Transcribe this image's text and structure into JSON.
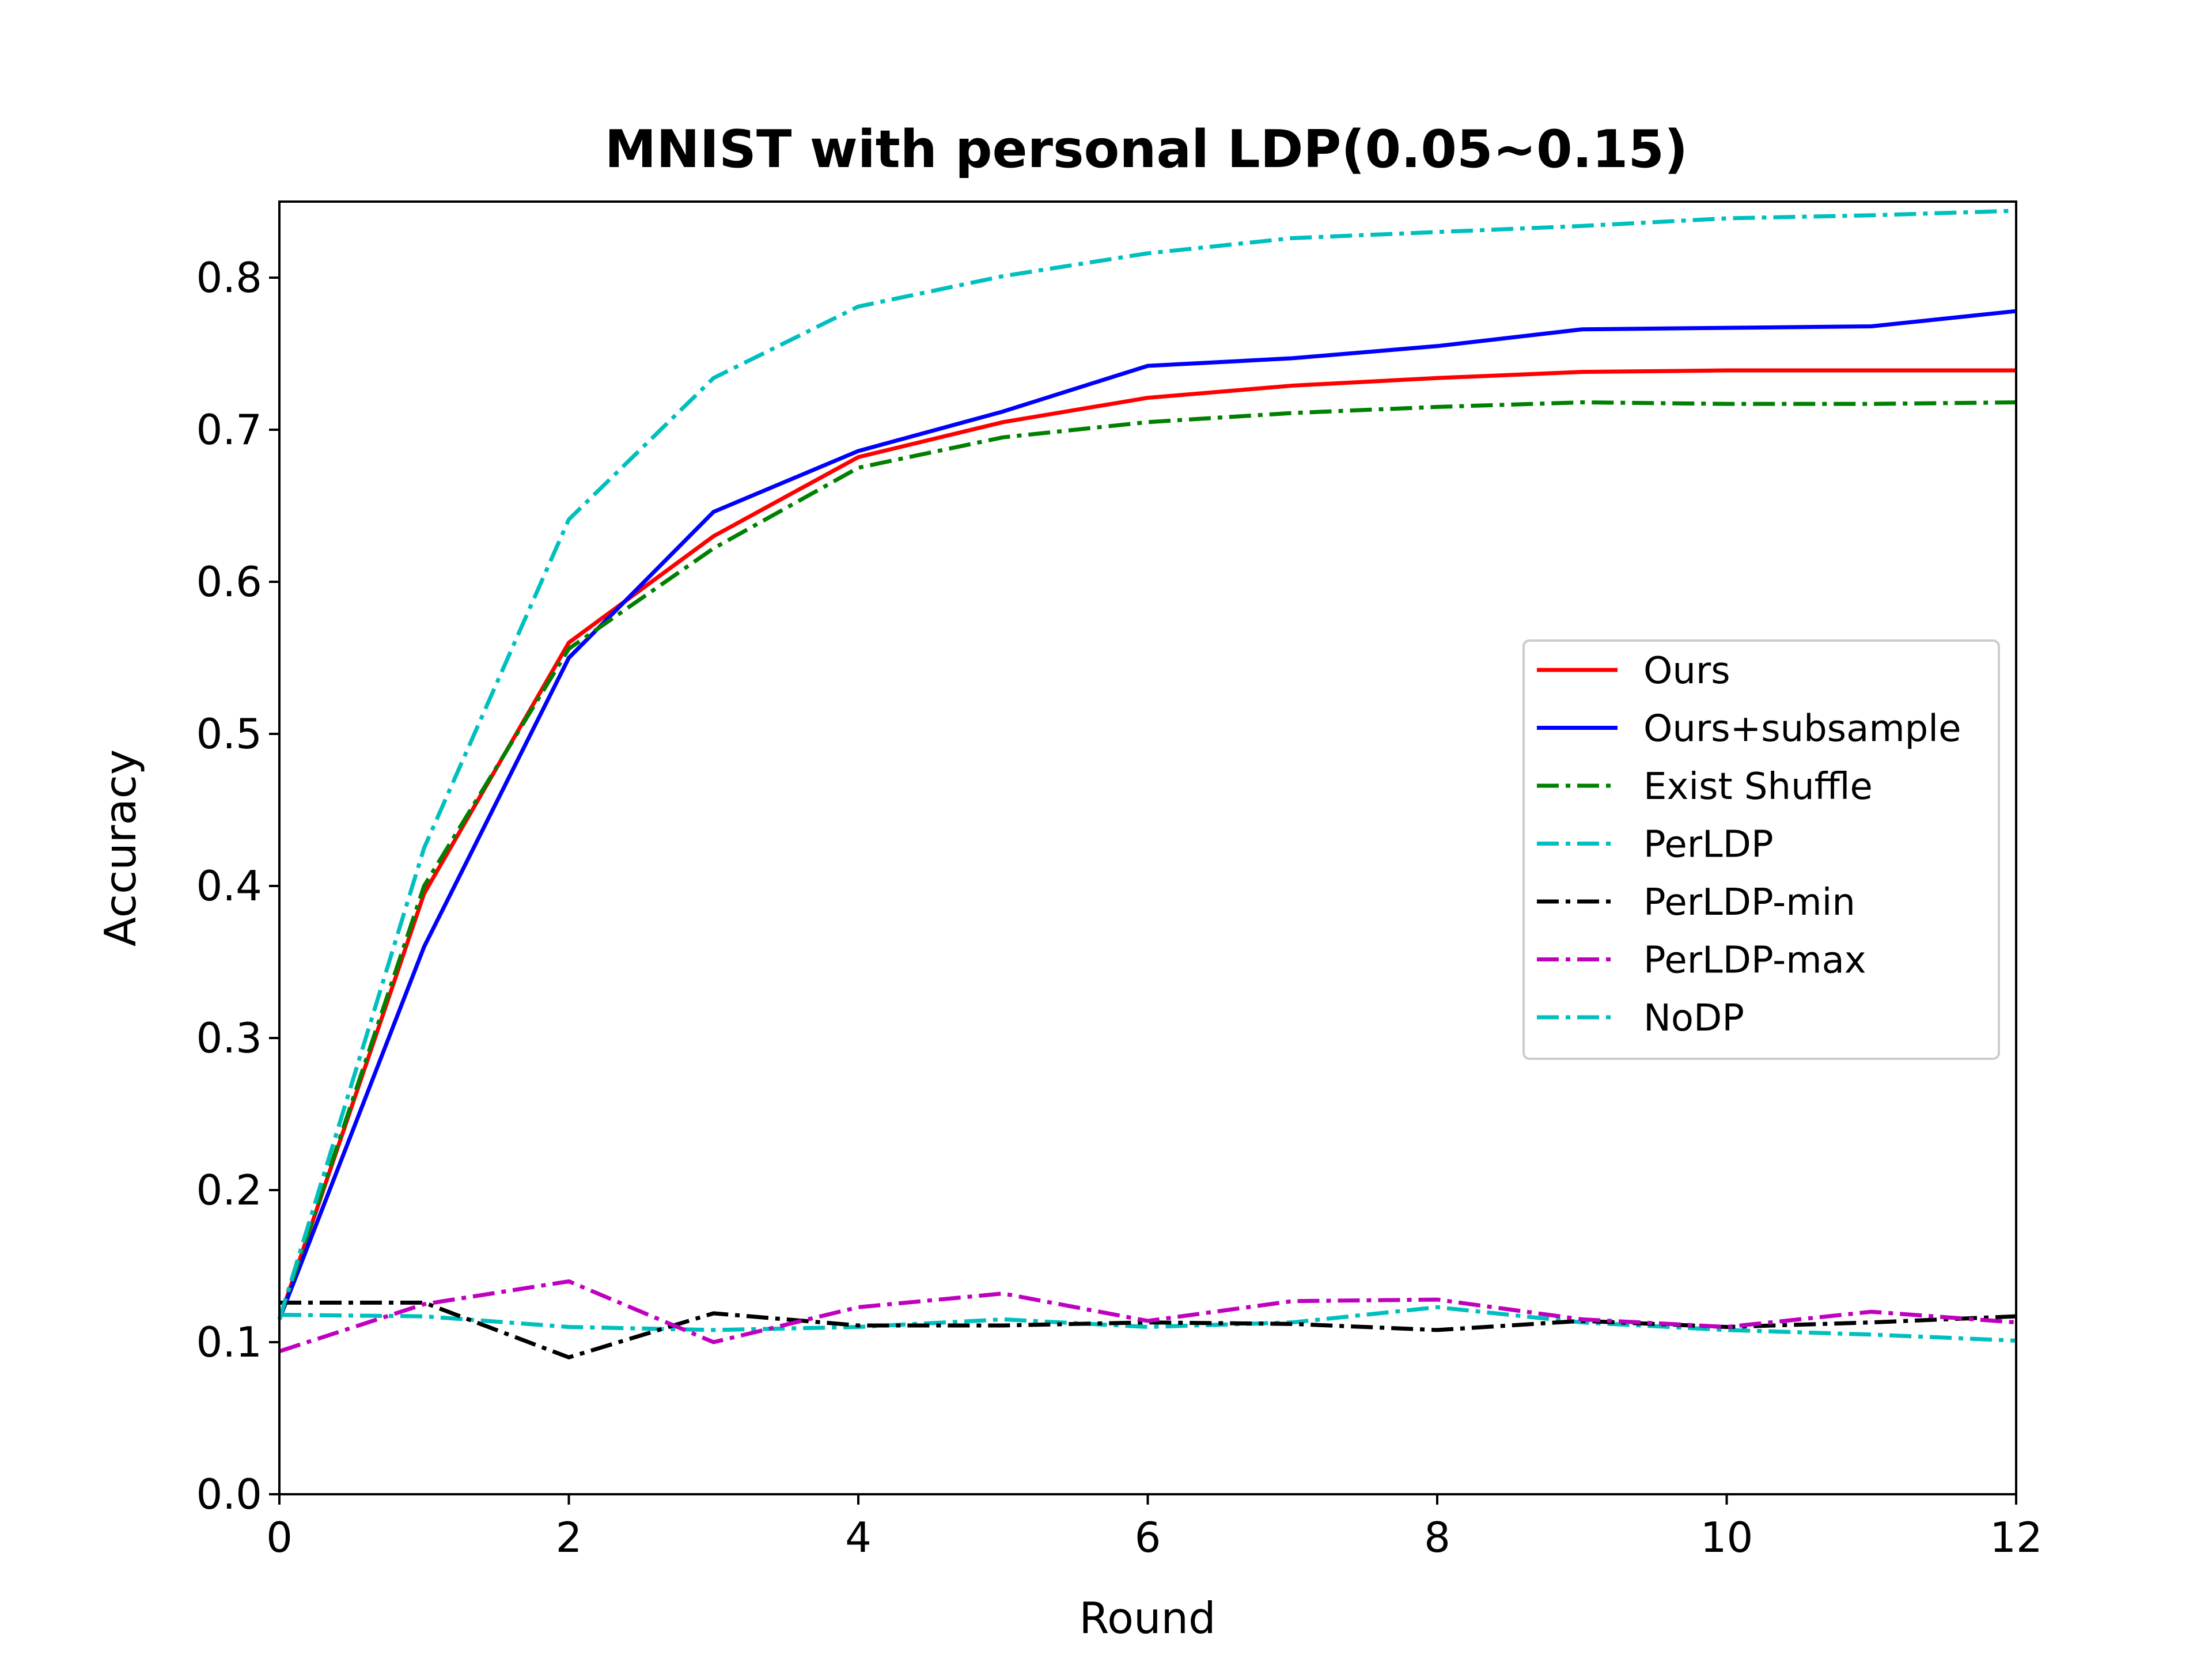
{
  "chart_data": {
    "type": "line",
    "title": "MNIST with personal LDP(0.05~0.15)",
    "xlabel": "Round",
    "ylabel": "Accuracy",
    "xlim": [
      0,
      12
    ],
    "ylim": [
      0,
      0.85
    ],
    "xticks": [
      "0",
      "2",
      "4",
      "6",
      "8",
      "10",
      "12"
    ],
    "yticks": [
      "0.0",
      "0.1",
      "0.2",
      "0.3",
      "0.4",
      "0.5",
      "0.6",
      "0.7",
      "0.8"
    ],
    "grid": false,
    "legend_position": "center-right",
    "x": [
      0,
      1,
      2,
      3,
      4,
      5,
      6,
      7,
      8,
      9,
      10,
      11,
      12
    ],
    "series": [
      {
        "name": "Ours",
        "color": "#ff0000",
        "style": "solid",
        "values": [
          0.115,
          0.395,
          0.56,
          0.63,
          0.682,
          0.705,
          0.721,
          0.729,
          0.734,
          0.738,
          0.739,
          0.739,
          0.739
        ]
      },
      {
        "name": "Ours+subsample",
        "color": "#0000ff",
        "style": "solid",
        "values": [
          0.115,
          0.36,
          0.55,
          0.646,
          0.686,
          0.712,
          0.742,
          0.747,
          0.755,
          0.766,
          0.767,
          0.768,
          0.778
        ]
      },
      {
        "name": "Exist Shuffle",
        "color": "#008000",
        "style": "dashdot",
        "values": [
          0.115,
          0.4,
          0.556,
          0.622,
          0.675,
          0.695,
          0.705,
          0.711,
          0.715,
          0.718,
          0.717,
          0.717,
          0.718
        ]
      },
      {
        "name": "PerLDP",
        "color": "#00bfbf",
        "style": "dashdot",
        "values": [
          0.118,
          0.117,
          0.11,
          0.108,
          0.11,
          0.115,
          0.11,
          0.113,
          0.123,
          0.113,
          0.108,
          0.105,
          0.101
        ]
      },
      {
        "name": "PerLDP-min",
        "color": "#000000",
        "style": "dashdot",
        "values": [
          0.126,
          0.126,
          0.09,
          0.119,
          0.111,
          0.111,
          0.113,
          0.112,
          0.108,
          0.114,
          0.11,
          0.113,
          0.117
        ]
      },
      {
        "name": "PerLDP-max",
        "color": "#bf00bf",
        "style": "dashdot",
        "values": [
          0.094,
          0.125,
          0.14,
          0.1,
          0.123,
          0.132,
          0.114,
          0.127,
          0.128,
          0.115,
          0.11,
          0.12,
          0.113
        ]
      },
      {
        "name": "NoDP",
        "color": "#00bfbf",
        "style": "dashdot",
        "values": [
          0.115,
          0.425,
          0.641,
          0.734,
          0.781,
          0.801,
          0.816,
          0.826,
          0.83,
          0.834,
          0.839,
          0.841,
          0.844
        ]
      }
    ]
  }
}
